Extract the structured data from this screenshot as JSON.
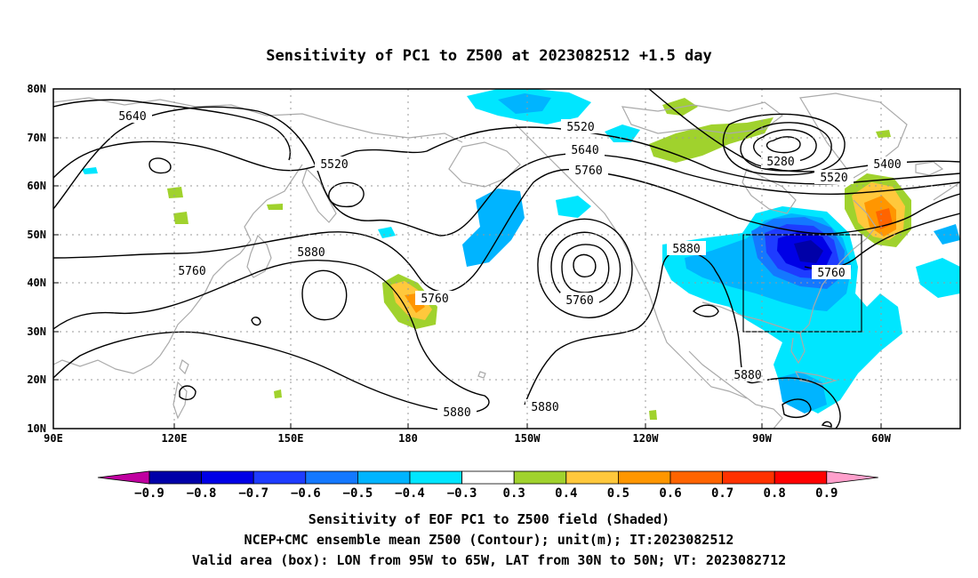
{
  "title": "Sensitivity of PC1 to Z500 at 2023082512 +1.5 day",
  "map": {
    "lat_labels": [
      "80N",
      "70N",
      "60N",
      "50N",
      "40N",
      "30N",
      "20N",
      "10N"
    ],
    "lon_labels": [
      "90E",
      "120E",
      "150E",
      "180",
      "150W",
      "120W",
      "90W",
      "60W"
    ],
    "lon_range": [
      "90E",
      "30W"
    ],
    "lat_range": [
      "10N",
      "80N"
    ],
    "grid": "dotted",
    "land_outline_color": "#aaaaaa",
    "contour_color": "#000000",
    "contour_labels": [
      "5640",
      "5520",
      "5760",
      "5880",
      "5760",
      "5520",
      "5640",
      "5760",
      "5880",
      "5760",
      "5280",
      "5520",
      "5400",
      "5760",
      "5880",
      "5880",
      "5880"
    ],
    "box": {
      "lon_from": "95W",
      "lon_to": "65W",
      "lat_from": "30N",
      "lat_to": "50N"
    }
  },
  "colorbar": {
    "labels": [
      "−0.9",
      "−0.8",
      "−0.7",
      "−0.6",
      "−0.5",
      "−0.4",
      "−0.3",
      "0.3",
      "0.4",
      "0.5",
      "0.6",
      "0.7",
      "0.8",
      "0.9"
    ],
    "colors": [
      "#c000a0",
      "#0000a8",
      "#0000e6",
      "#1e3cff",
      "#1478ff",
      "#00b4ff",
      "#00e6ff",
      "#ffffff",
      "#a0d22d",
      "#ffc83c",
      "#ff9600",
      "#ff6400",
      "#ff3200",
      "#ff0000",
      "#ffa0cc"
    ]
  },
  "captions": [
    "Sensitivity of EOF PC1 to Z500 field (Shaded)",
    "NCEP+CMC ensemble mean Z500 (Contour); unit(m); IT:2023082512",
    "Valid area (box): LON from 95W to 65W, LAT from 30N to 50N; VT: 2023082712"
  ]
}
